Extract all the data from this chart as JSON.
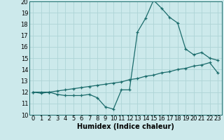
{
  "title": "",
  "xlabel": "Humidex (Indice chaleur)",
  "background_color": "#cce9eb",
  "grid_color": "#aed4d6",
  "line_color": "#1a6b6b",
  "xlim": [
    -0.5,
    23.5
  ],
  "ylim": [
    10,
    20
  ],
  "yticks": [
    10,
    11,
    12,
    13,
    14,
    15,
    16,
    17,
    18,
    19,
    20
  ],
  "xticks": [
    0,
    1,
    2,
    3,
    4,
    5,
    6,
    7,
    8,
    9,
    10,
    11,
    12,
    13,
    14,
    15,
    16,
    17,
    18,
    19,
    20,
    21,
    22,
    23
  ],
  "line1_x": [
    0,
    1,
    2,
    3,
    4,
    5,
    6,
    7,
    8,
    9,
    10,
    11,
    12,
    13,
    14,
    15,
    16,
    17,
    18,
    19,
    20,
    21,
    22,
    23
  ],
  "line1_y": [
    12.0,
    11.9,
    12.0,
    11.8,
    11.7,
    11.7,
    11.7,
    11.8,
    11.5,
    10.7,
    10.5,
    12.2,
    12.2,
    17.3,
    18.5,
    20.1,
    19.4,
    18.6,
    18.1,
    15.8,
    15.3,
    15.5,
    15.0,
    14.8
  ],
  "line2_x": [
    0,
    1,
    2,
    3,
    4,
    5,
    6,
    7,
    8,
    9,
    10,
    11,
    12,
    13,
    14,
    15,
    16,
    17,
    18,
    19,
    20,
    21,
    22,
    23
  ],
  "line2_y": [
    12.0,
    12.0,
    12.0,
    12.1,
    12.2,
    12.3,
    12.4,
    12.5,
    12.6,
    12.7,
    12.8,
    12.9,
    13.1,
    13.2,
    13.4,
    13.5,
    13.7,
    13.8,
    14.0,
    14.1,
    14.3,
    14.4,
    14.6,
    13.7
  ],
  "font_size_xlabel": 7,
  "font_size_ticks": 6
}
